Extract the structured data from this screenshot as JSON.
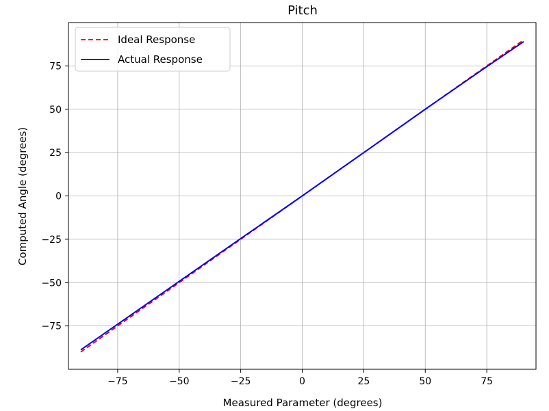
{
  "chart_data": {
    "type": "line",
    "title": "Pitch",
    "xlabel": "Measured Parameter (degrees)",
    "ylabel": "Computed Angle (degrees)",
    "xlim": [
      -95,
      95
    ],
    "ylim": [
      -100,
      100
    ],
    "xticks": [
      -75,
      -50,
      -25,
      0,
      25,
      50,
      75
    ],
    "yticks": [
      -75,
      -50,
      -25,
      0,
      25,
      50,
      75
    ],
    "xtick_labels": [
      "−75",
      "−50",
      "−25",
      "0",
      "25",
      "50",
      "75"
    ],
    "ytick_labels": [
      "−75",
      "−50",
      "−25",
      "0",
      "25",
      "50",
      "75"
    ],
    "grid": true,
    "legend_position": "upper-left",
    "series": [
      {
        "name": "Ideal Response",
        "color": "#ff0000",
        "style": "dashed",
        "x": [
          -90,
          -75,
          -50,
          -25,
          0,
          25,
          50,
          75,
          90
        ],
        "y": [
          -90,
          -75,
          -50,
          -25,
          0,
          25,
          50,
          75,
          90
        ]
      },
      {
        "name": "Actual Response",
        "color": "#0000ff",
        "style": "solid",
        "x": [
          -90,
          -75,
          -50,
          -25,
          0,
          25,
          50,
          75,
          90
        ],
        "y": [
          -88.8,
          -74,
          -49.3,
          -24.6,
          0,
          25,
          50,
          74.6,
          89
        ]
      }
    ]
  }
}
